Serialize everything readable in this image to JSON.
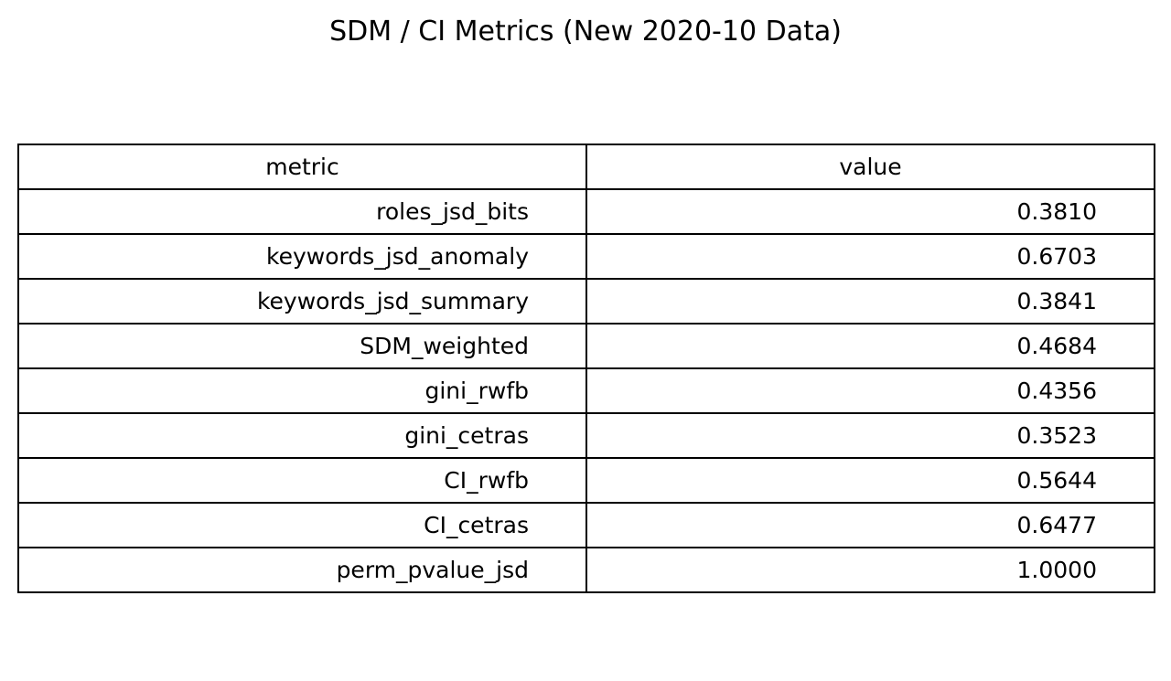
{
  "chart_data": {
    "type": "table",
    "title": "SDM / CI Metrics (New 2020-10 Data)",
    "columns": [
      "metric",
      "value"
    ],
    "rows": [
      {
        "metric": "roles_jsd_bits",
        "value": "0.3810"
      },
      {
        "metric": "keywords_jsd_anomaly",
        "value": "0.6703"
      },
      {
        "metric": "keywords_jsd_summary",
        "value": "0.3841"
      },
      {
        "metric": "SDM_weighted",
        "value": "0.4684"
      },
      {
        "metric": "gini_rwfb",
        "value": "0.4356"
      },
      {
        "metric": "gini_cetras",
        "value": "0.3523"
      },
      {
        "metric": "CI_rwfb",
        "value": "0.5644"
      },
      {
        "metric": "CI_cetras",
        "value": "0.6477"
      },
      {
        "metric": "perm_pvalue_jsd",
        "value": "1.0000"
      }
    ]
  },
  "colors": {
    "background": "#ffffff",
    "text": "#000000",
    "border": "#000000"
  }
}
